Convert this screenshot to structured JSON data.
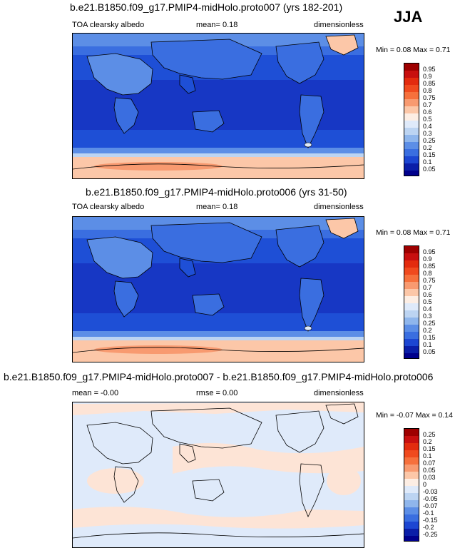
{
  "season": "JJA",
  "panels": [
    {
      "title": "b.e21.B1850.f09_g17.PMIP4-midHolo.proto007 (yrs 182-201)",
      "left": "TOA clearsky albedo",
      "center": "mean=   0.18",
      "right": "dimensionless",
      "minmax": "Min =   0.08 Max =   0.71",
      "levels": [
        "0.95",
        "0.9",
        "0.85",
        "0.8",
        "0.75",
        "0.7",
        "0.6",
        "0.5",
        "0.4",
        "0.3",
        "0.25",
        "0.2",
        "0.15",
        "0.1",
        "0.05"
      ]
    },
    {
      "title": "b.e21.B1850.f09_g17.PMIP4-midHolo.proto006 (yrs 31-50)",
      "left": "TOA clearsky albedo",
      "center": "mean=   0.18",
      "right": "dimensionless",
      "minmax": "Min =   0.08 Max =   0.71",
      "levels": [
        "0.95",
        "0.9",
        "0.85",
        "0.8",
        "0.75",
        "0.7",
        "0.6",
        "0.5",
        "0.4",
        "0.3",
        "0.25",
        "0.2",
        "0.15",
        "0.1",
        "0.05"
      ]
    },
    {
      "title": "b.e21.B1850.f09_g17.PMIP4-midHolo.proto007 - b.e21.B1850.f09_g17.PMIP4-midHolo.proto006",
      "left": "mean =  -0.00",
      "center": "rmse =   0.00",
      "right": "dimensionless",
      "minmax": "Min =  -0.07 Max =   0.14",
      "levels": [
        "0.25",
        "0.2",
        "0.15",
        "0.1",
        "0.07",
        "0.05",
        "0.03",
        "0",
        "-0.03",
        "-0.05",
        "-0.07",
        "-0.1",
        "-0.15",
        "-0.2",
        "-0.25"
      ]
    }
  ],
  "colors": {
    "scale": [
      "#9e0000",
      "#c80f0f",
      "#e32b0e",
      "#f04a1e",
      "#f6703c",
      "#f89a70",
      "#fcc7a8",
      "#fdeee4",
      "#dfeafa",
      "#bcd4f2",
      "#8fb6ec",
      "#5c8ee6",
      "#3a6ee0",
      "#1c46d2",
      "#0a1ea8",
      "#00008c"
    ],
    "ocean_mid": "#1e4fd6",
    "ocean_tropics": "#1737c4",
    "ocean_high": "#3a6ee0",
    "polar_pale": "#fcc7a8",
    "diff_base": "#dfeafa",
    "diff_pos": "#fde4d6"
  }
}
